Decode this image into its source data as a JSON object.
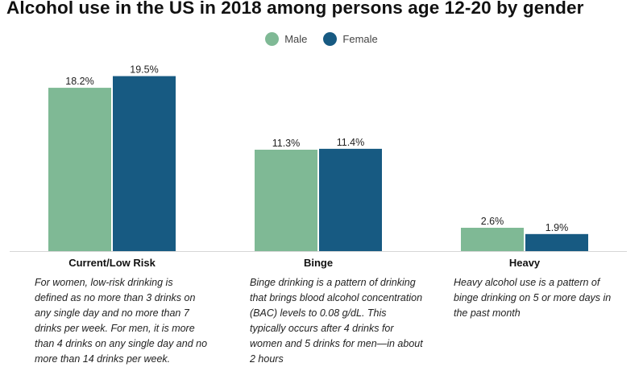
{
  "chart_data": {
    "type": "bar",
    "title": "Alcohol use in the US in 2018 among persons age 12-20 by gender",
    "categories": [
      "Current/Low Risk",
      "Binge",
      "Heavy"
    ],
    "series": [
      {
        "name": "Male",
        "color": "#7fb995",
        "values": [
          18.2,
          11.3,
          2.6
        ],
        "labels": [
          "18.2%",
          "11.3%",
          "2.6%"
        ]
      },
      {
        "name": "Female",
        "color": "#175a82",
        "values": [
          19.5,
          11.4,
          1.9
        ],
        "labels": [
          "19.5%",
          "11.4%",
          "1.9%"
        ]
      }
    ],
    "ylim": [
      0,
      20
    ],
    "grid": false,
    "legend_position": "top-center",
    "notes": [
      "For women, low-risk drinking is defined as no more than 3 drinks on any single day and no more than 7 drinks per week. For men, it is more than 4 drinks on any single day and no more than 14 drinks per week.",
      "Binge drinking is a pattern of drinking that brings blood alcohol concentration (BAC) levels to 0.08 g/dL. This typically occurs after 4 drinks for women and 5 drinks for men—in about 2 hours",
      "Heavy alcohol use is a pattern of binge drinking on 5 or more days in the past month"
    ]
  }
}
